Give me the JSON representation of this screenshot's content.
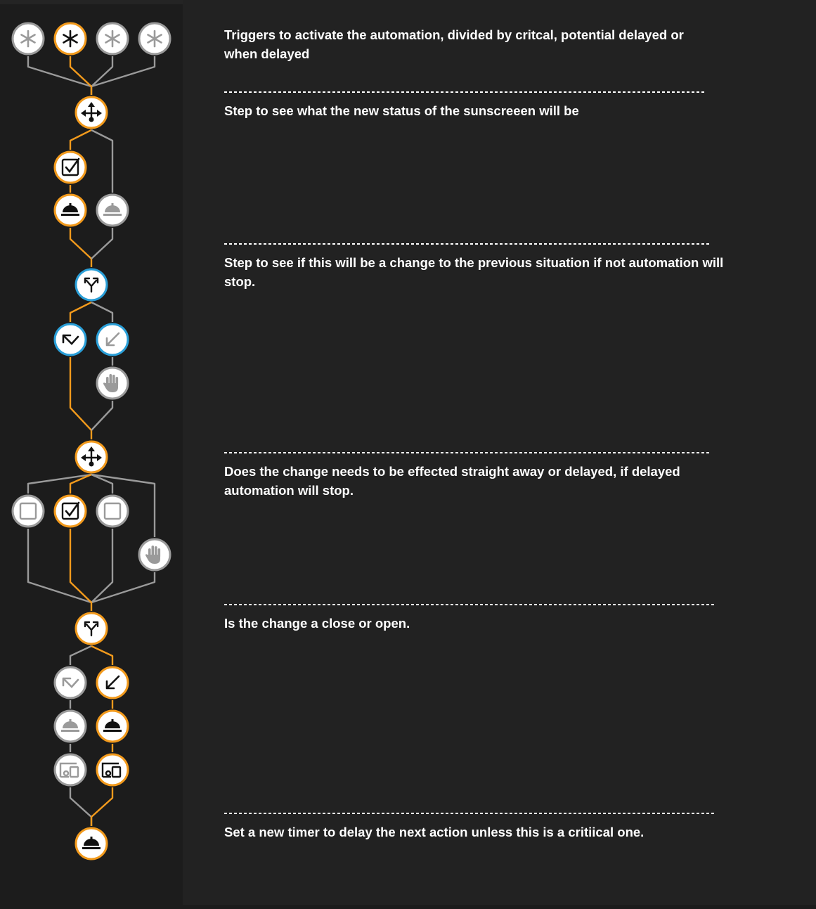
{
  "colors": {
    "active": "#f29a1c",
    "inactive": "#9a9a9a",
    "condition": "#2a9fd8",
    "node_fill": "#ffffff",
    "text": "#ffffff",
    "background": "#222222"
  },
  "flow": {
    "nodes": [
      {
        "id": "t1",
        "icon": "asterisk-icon",
        "state": "inactive"
      },
      {
        "id": "t2",
        "icon": "asterisk-icon",
        "state": "active"
      },
      {
        "id": "t3",
        "icon": "asterisk-icon",
        "state": "inactive"
      },
      {
        "id": "t4",
        "icon": "asterisk-icon",
        "state": "inactive"
      },
      {
        "id": "c1",
        "icon": "choose-icon",
        "state": "active"
      },
      {
        "id": "o1",
        "icon": "checkbox-checked-icon",
        "state": "active"
      },
      {
        "id": "s1",
        "icon": "service-bell-icon",
        "state": "active"
      },
      {
        "id": "s2",
        "icon": "service-bell-icon",
        "state": "inactive"
      },
      {
        "id": "i1",
        "icon": "if-then-icon",
        "state": "condition"
      },
      {
        "id": "th1",
        "icon": "then-icon",
        "state": "condition"
      },
      {
        "id": "el1",
        "icon": "else-icon",
        "state": "condition-muted"
      },
      {
        "id": "h1",
        "icon": "stop-hand-icon",
        "state": "inactive"
      },
      {
        "id": "c2",
        "icon": "choose-icon",
        "state": "active"
      },
      {
        "id": "o2",
        "icon": "checkbox-empty-icon",
        "state": "inactive"
      },
      {
        "id": "o3",
        "icon": "checkbox-checked-icon",
        "state": "active"
      },
      {
        "id": "o4",
        "icon": "checkbox-empty-icon",
        "state": "inactive"
      },
      {
        "id": "h2",
        "icon": "stop-hand-icon",
        "state": "inactive"
      },
      {
        "id": "i2",
        "icon": "if-then-icon",
        "state": "active"
      },
      {
        "id": "th2",
        "icon": "then-icon",
        "state": "inactive"
      },
      {
        "id": "el2",
        "icon": "else-icon",
        "state": "active"
      },
      {
        "id": "s3",
        "icon": "service-bell-icon",
        "state": "inactive"
      },
      {
        "id": "s4",
        "icon": "service-bell-icon",
        "state": "active"
      },
      {
        "id": "d1",
        "icon": "device-icon",
        "state": "inactive"
      },
      {
        "id": "d2",
        "icon": "device-icon",
        "state": "active"
      },
      {
        "id": "s5",
        "icon": "service-bell-icon",
        "state": "active"
      }
    ]
  },
  "notes": [
    {
      "text": "Triggers to activate the automation, divided by critcal, potential delayed or\nwhen delayed"
    },
    {
      "separator": "-----------------------------------------------------------------------------------------------------------",
      "text": "Step to see what the new status of the sunscreeen will be"
    },
    {
      "separator": "-----------------------------------------------------------------------------------------------------------",
      "text": "Step to see if this will be a change to the previous situation if not automation will\nstop."
    },
    {
      "separator": "-----------------------------------------------------------------------------------------------------------",
      "text": "Does the change needs to be effected straight away or delayed, if delayed\nautomation will stop."
    },
    {
      "separator": "-----------------------------------------------------------------------------------------------------------",
      "text": "Is the change a close or open."
    },
    {
      "separator": "-----------------------------------------------------------------------------------------------------------",
      "text": "Set a new timer to delay the next action unless this is a critiical one."
    }
  ]
}
